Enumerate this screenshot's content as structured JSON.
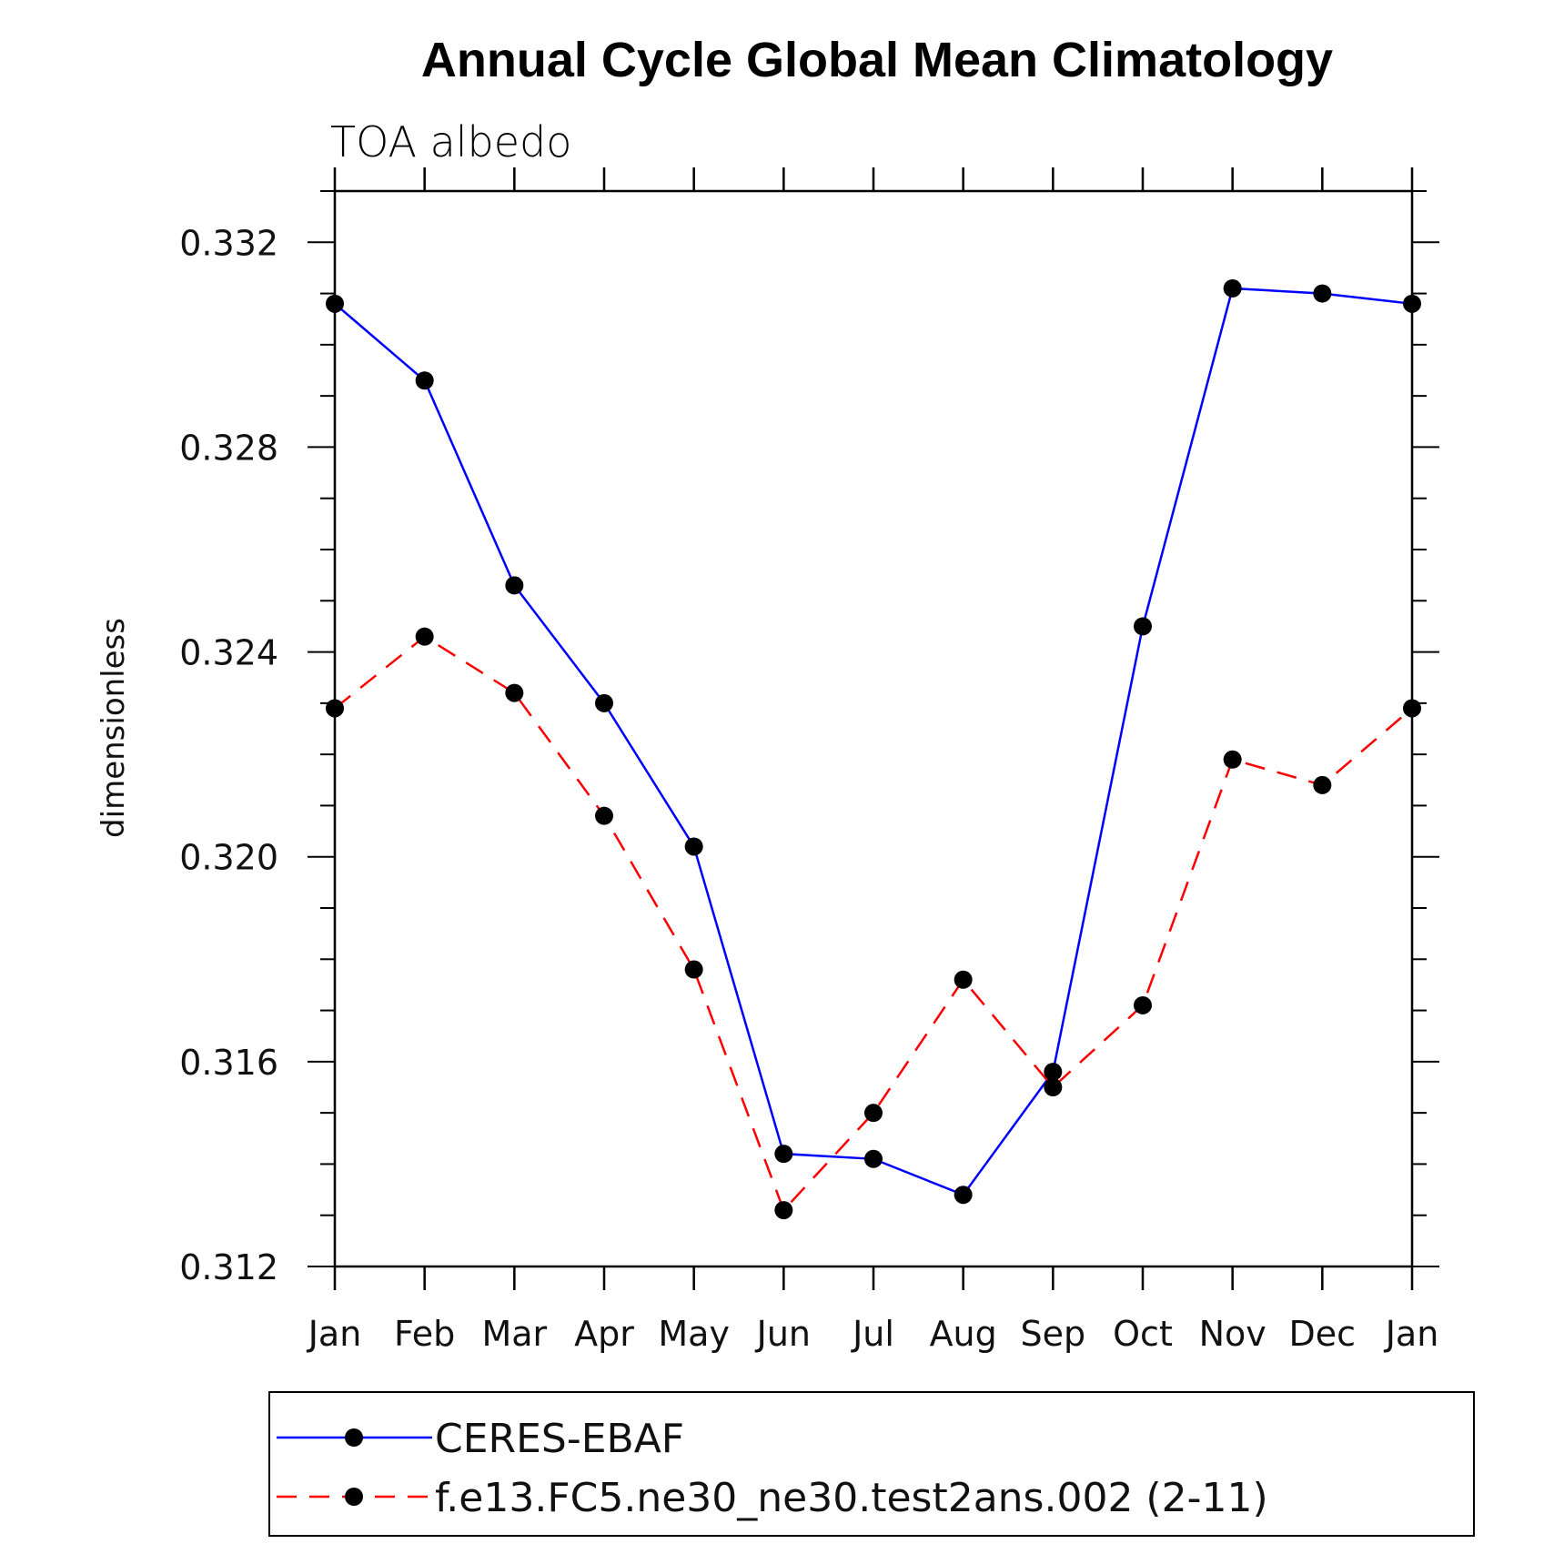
{
  "chart_data": {
    "type": "line",
    "title": "Annual Cycle Global Mean Climatology",
    "subtitle": "TOA albedo",
    "xlabel": "",
    "ylabel": "dimensionless",
    "categories": [
      "Jan",
      "Feb",
      "Mar",
      "Apr",
      "May",
      "Jun",
      "Jul",
      "Aug",
      "Sep",
      "Oct",
      "Nov",
      "Dec",
      "Jan"
    ],
    "ylim": [
      0.312,
      0.333
    ],
    "yticks": [
      "0.312",
      "0.316",
      "0.320",
      "0.324",
      "0.328",
      "0.332"
    ],
    "ytick_values": [
      0.312,
      0.316,
      0.32,
      0.324,
      0.328,
      0.332
    ],
    "legend_position": "bottom",
    "series": [
      {
        "name": "CERES-EBAF",
        "color": "#0000ff",
        "style": "solid",
        "marker": "filled-circle",
        "values": [
          0.3308,
          0.3293,
          0.3253,
          0.323,
          0.3202,
          0.3142,
          0.3141,
          0.3134,
          0.3158,
          0.3245,
          0.3311,
          0.331,
          0.3308
        ]
      },
      {
        "name": "f.e13.FC5.ne30_ne30.test2ans.002 (2-11)",
        "color": "#ff0000",
        "style": "dashed",
        "marker": "filled-circle",
        "values": [
          0.3229,
          0.3243,
          0.3232,
          0.3208,
          0.3178,
          0.3131,
          0.315,
          0.3176,
          0.3155,
          0.3171,
          0.3219,
          0.3214,
          0.3229
        ]
      }
    ]
  }
}
